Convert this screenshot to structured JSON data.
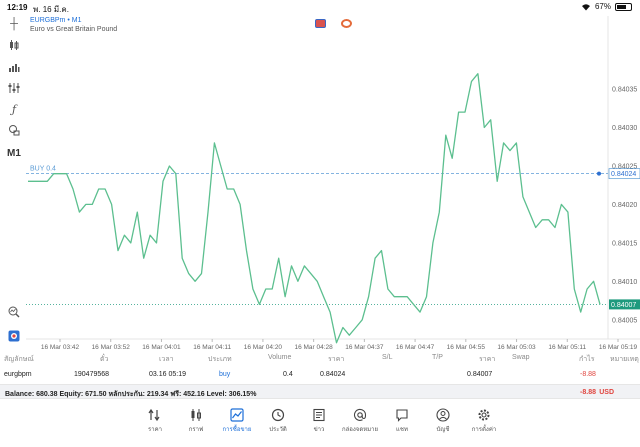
{
  "status_bar": {
    "time": "12:19",
    "date": "พ. 16 มี.ค.",
    "battery": "67%",
    "battery_level": 0.67
  },
  "chart": {
    "symbol_line": "EURGBPm • M1",
    "description": "Euro vs Great Britain Pound",
    "timeframe": "M1",
    "order_line_label": "BUY 0.4",
    "order_price": 0.84024,
    "current_price_label": "0.84007",
    "order_price_label": "0.84024",
    "colors": {
      "line": "#5cbf8f",
      "order_line": "#5b9bd5",
      "price_tag": "#1e9a7e",
      "accent": "#1d6fd8"
    }
  },
  "chart_data": {
    "type": "line",
    "title": "",
    "xlabel": "",
    "ylabel": "",
    "ylim": [
      0.840025,
      0.840445
    ],
    "y_ticks": [
      "0.84035",
      "0.84030",
      "0.84025",
      "0.84020",
      "0.84015",
      "0.84010",
      "0.84005"
    ],
    "x_ticks": [
      "16 Mar 03:42",
      "16 Mar 03:52",
      "16 Mar 04:01",
      "16 Mar 04:11",
      "16 Mar 04:20",
      "16 Mar 04:28",
      "16 Mar 04:37",
      "16 Mar 04:47",
      "16 Mar 04:55",
      "16 Mar 05:03",
      "16 Mar 05:11",
      "16 Mar 05:19"
    ],
    "grid": false,
    "series": [
      {
        "values": [
          0.84023,
          0.84023,
          0.84023,
          0.84023,
          0.84024,
          0.84024,
          0.84024,
          0.84022,
          0.84019,
          0.8402,
          0.8402,
          0.84022,
          0.84022,
          0.8402,
          0.84014,
          0.84016,
          0.84015,
          0.84019,
          0.84013,
          0.84016,
          0.84015,
          0.84023,
          0.84025,
          0.84024,
          0.84013,
          0.84011,
          0.8401,
          0.84011,
          0.84019,
          0.84028,
          0.84025,
          0.84022,
          0.84022,
          0.8402,
          0.84014,
          0.84009,
          0.84007,
          0.84009,
          0.84009,
          0.84013,
          0.84008,
          0.84012,
          0.8401,
          0.84012,
          0.84011,
          0.8401,
          0.84008,
          0.84006,
          0.84002,
          0.84004,
          0.84003,
          0.84004,
          0.84005,
          0.84008,
          0.84013,
          0.84014,
          0.84009,
          0.84008,
          0.84008,
          0.84008,
          0.84007,
          0.84006,
          0.84008,
          0.84015,
          0.84019,
          0.84029,
          0.84026,
          0.84032,
          0.84032,
          0.84036,
          0.84037,
          0.8403,
          0.84031,
          0.84023,
          0.84028,
          0.84027,
          0.84028,
          0.84021,
          0.84019,
          0.84017,
          0.84018,
          0.84018,
          0.84017,
          0.8402,
          0.84019,
          0.84009,
          0.84006,
          0.84009,
          0.8401,
          0.84007
        ]
      }
    ]
  },
  "table": {
    "headers": [
      "สัญลักษณ์",
      "ตั๋ว",
      "เวลา",
      "ประเภท",
      "Volume",
      "ราคา",
      "S/L",
      "T/P",
      "ราคา",
      "Swap",
      "กำไร",
      "หมายเหตุ"
    ],
    "rows": [
      {
        "symbol": "eurgbpm",
        "ticket": "190479568",
        "time": "03.16 05:19",
        "type": "buy",
        "volume": "0.4",
        "open_price": "0.84024",
        "sl": "",
        "tp": "",
        "price": "0.84007",
        "swap": "",
        "profit": "-8.88",
        "comment": ""
      }
    ]
  },
  "balance": {
    "text": "Balance: 680.38 Equity: 671.50 หลักประกัน: 219.34 ฟรี: 452.16 Level: 306.15%",
    "profit": "-8.88",
    "currency": "USD"
  },
  "tabs": [
    {
      "label": "ราคา",
      "icon": "arrows-updown-icon"
    },
    {
      "label": "กราฟ",
      "icon": "candlestick-icon"
    },
    {
      "label": "การซื้อขาย",
      "icon": "trade-chart-icon",
      "active": true
    },
    {
      "label": "ประวัติ",
      "icon": "history-icon"
    },
    {
      "label": "ข่าว",
      "icon": "news-icon"
    },
    {
      "label": "กล่องจดหมาย",
      "icon": "at-icon"
    },
    {
      "label": "แชท",
      "icon": "chat-icon"
    },
    {
      "label": "บัญชี",
      "icon": "account-icon"
    },
    {
      "label": "การตั้งค่า",
      "icon": "settings-icon"
    }
  ]
}
